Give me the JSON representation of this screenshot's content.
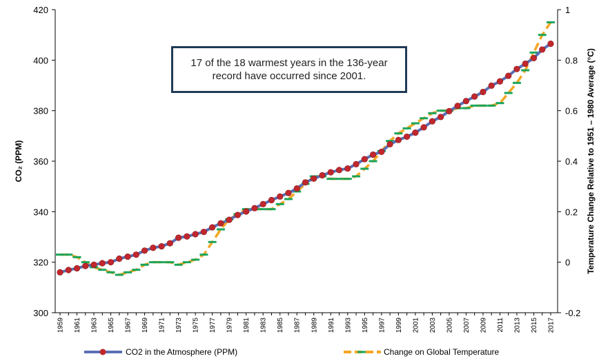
{
  "chart_data": {
    "type": "line",
    "x": [
      1959,
      1960,
      1961,
      1962,
      1963,
      1964,
      1965,
      1966,
      1967,
      1968,
      1969,
      1970,
      1971,
      1972,
      1973,
      1974,
      1975,
      1976,
      1977,
      1978,
      1979,
      1980,
      1981,
      1982,
      1983,
      1984,
      1985,
      1986,
      1987,
      1988,
      1989,
      1990,
      1991,
      1992,
      1993,
      1994,
      1995,
      1996,
      1997,
      1998,
      1999,
      2000,
      2001,
      2002,
      2003,
      2004,
      2005,
      2006,
      2007,
      2008,
      2009,
      2010,
      2011,
      2012,
      2013,
      2014,
      2015,
      2016,
      2017
    ],
    "x_tick_labels": [
      "1959",
      "1961",
      "1963",
      "1965",
      "1967",
      "1969",
      "1971",
      "1973",
      "1975",
      "1977",
      "1979",
      "1981",
      "1983",
      "1985",
      "1987",
      "1989",
      "1991",
      "1993",
      "1995",
      "1997",
      "1999",
      "2001",
      "2003",
      "2005",
      "2007",
      "2009",
      "2011",
      "2013",
      "2015",
      "2017"
    ],
    "series": [
      {
        "name": "CO2 in the Atmosphere (PPM)",
        "axis": "left",
        "color": "#5b6fb5",
        "marker_color": "#c0282d",
        "values": [
          316.0,
          316.9,
          317.6,
          318.5,
          319.0,
          319.6,
          320.0,
          321.4,
          322.2,
          323.0,
          324.6,
          325.7,
          326.3,
          327.5,
          329.7,
          330.2,
          331.1,
          332.0,
          333.8,
          335.4,
          336.8,
          338.7,
          340.1,
          341.4,
          343.0,
          344.6,
          346.0,
          347.4,
          349.2,
          351.6,
          353.1,
          354.4,
          355.6,
          356.5,
          357.1,
          358.8,
          360.8,
          362.6,
          363.7,
          366.7,
          368.4,
          369.7,
          371.3,
          373.4,
          375.8,
          377.5,
          379.8,
          381.9,
          383.8,
          385.6,
          387.4,
          389.9,
          391.6,
          393.8,
          396.5,
          398.6,
          400.8,
          404.2,
          406.5
        ]
      },
      {
        "name": "Change on Global Temperature",
        "axis": "right",
        "color": "#f5a623",
        "marker_color": "#1aa55a",
        "values": [
          0.03,
          0.03,
          0.02,
          0.0,
          -0.02,
          -0.03,
          -0.04,
          -0.05,
          -0.04,
          -0.03,
          -0.01,
          0.0,
          0.0,
          0.0,
          -0.01,
          0.0,
          0.01,
          0.03,
          0.08,
          0.13,
          0.17,
          0.19,
          0.21,
          0.21,
          0.21,
          0.21,
          0.23,
          0.25,
          0.28,
          0.31,
          0.34,
          0.34,
          0.33,
          0.33,
          0.33,
          0.34,
          0.37,
          0.4,
          0.44,
          0.48,
          0.51,
          0.53,
          0.55,
          0.57,
          0.59,
          0.6,
          0.6,
          0.61,
          0.61,
          0.62,
          0.62,
          0.62,
          0.63,
          0.67,
          0.71,
          0.76,
          0.83,
          0.9,
          0.95
        ]
      }
    ],
    "ylabel": "CO₂ (PPM)",
    "ylim": [
      300,
      420
    ],
    "yticks": [
      300,
      320,
      340,
      360,
      380,
      400,
      420
    ],
    "y2label": "Temperature Change Relative to 1951 – 1980 Average (°C)",
    "y2lim": [
      -0.2,
      1
    ],
    "y2ticks": [
      -0.2,
      0,
      0.2,
      0.4,
      0.6,
      0.8,
      1
    ],
    "y2tick_labels": [
      "-0.2",
      "0",
      "0.2",
      "0.4",
      "0.6",
      "0.8",
      "1"
    ],
    "grid": false,
    "legend_position": "bottom",
    "annotation": "17 of the 18 warmest years in the 136-year record have occurred since 2001."
  }
}
